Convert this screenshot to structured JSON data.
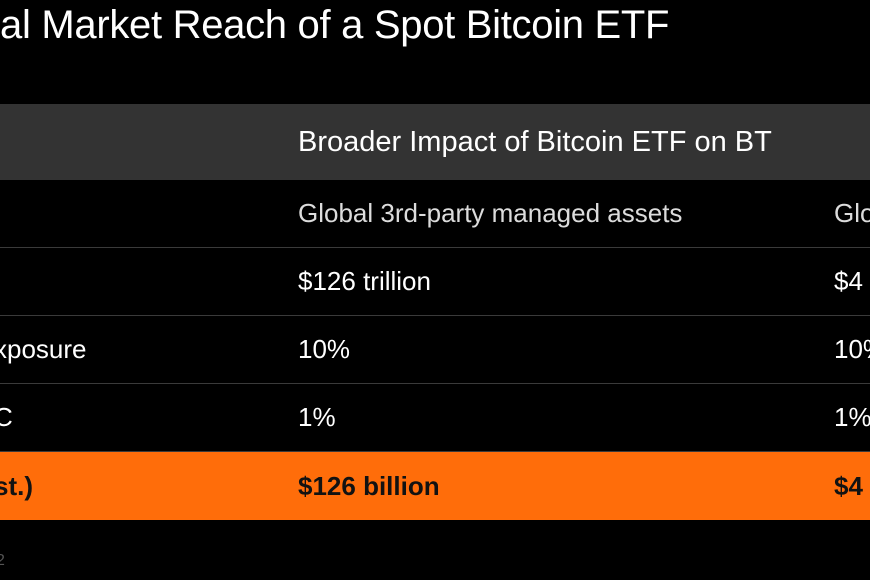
{
  "title": "al Market Reach of a Spot Bitcoin ETF",
  "table": {
    "header": {
      "label": "",
      "group_title": "Broader Impact of Bitcoin ETF on BT"
    },
    "subheader": {
      "label": "",
      "col1": "Global 3rd-party managed assets",
      "col2": "Glo"
    },
    "rows": [
      {
        "label": "",
        "col1": "$126 trillion",
        "col2": "$4"
      },
      {
        "label": "xposure",
        "col1": "10%",
        "col2": "10%"
      },
      {
        "label": "C",
        "col1": "1%",
        "col2": "1%"
      }
    ],
    "highlight": {
      "label": "st.)",
      "col1": "$126 billion",
      "col2": "$4"
    }
  },
  "footnote": "2",
  "colors": {
    "background": "#000000",
    "header_band": "#333333",
    "highlight_band": "#ff6d0a"
  }
}
